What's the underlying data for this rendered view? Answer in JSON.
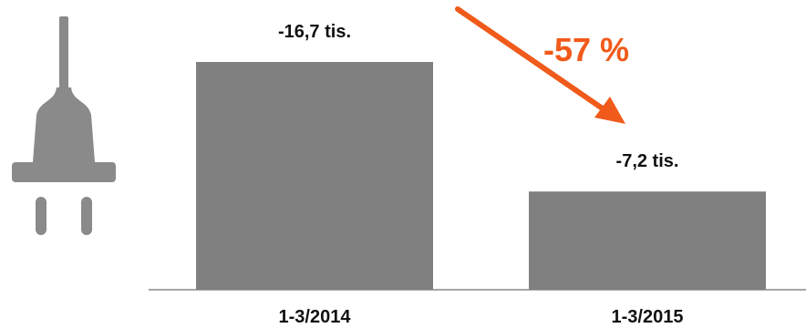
{
  "chart_data": {
    "type": "bar",
    "categories": [
      "1-3/2014",
      "1-3/2015"
    ],
    "values": [
      -16.7,
      -7.2
    ],
    "data_labels": [
      "-16,7 tis.",
      "-7,2 tis."
    ],
    "annotation": {
      "text": "-57 %",
      "direction": "decrease"
    },
    "grid": false,
    "legend": "none",
    "colors": {
      "bar": "#808080",
      "arrow": "#f05a1a",
      "plug": "#8a8a8a",
      "axis": "#888888",
      "text": "#111111"
    }
  },
  "icons": {
    "plug": "plug-icon",
    "arrow": "trend-arrow-icon"
  }
}
